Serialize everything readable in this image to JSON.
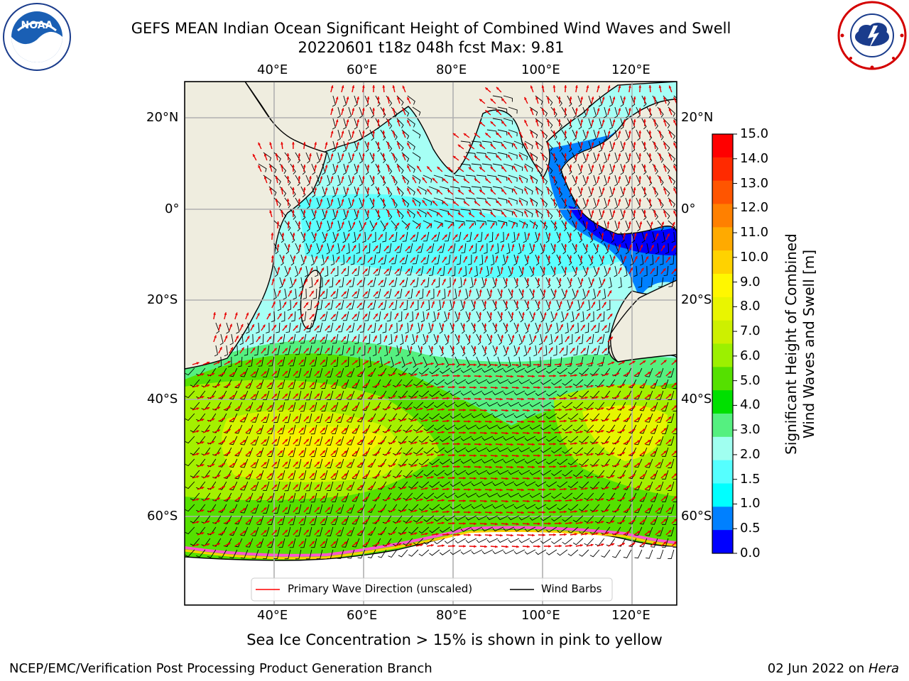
{
  "header": {
    "title_line1": "GEFS MEAN Indian Ocean Significant Height of Combined Wind Waves and Swell",
    "title_line2": "20220601 t18z 048h fcst   Max: 9.81"
  },
  "logos": {
    "left": {
      "text": "NOAA",
      "ring_text": "NATIONAL OCEANIC AND ATMOSPHERIC ADMINISTRATION · U.S. DEPARTMENT OF COMMERCE"
    },
    "right": {
      "ring_text": "NATIONAL WEATHER SERVICE"
    }
  },
  "map": {
    "lon_labels_top": [
      "40°E",
      "60°E",
      "80°E",
      "100°E",
      "120°E"
    ],
    "lon_labels_bottom": [
      "40°E",
      "60°E",
      "80°E",
      "100°E",
      "120°E"
    ],
    "lat_labels_left": [
      "20°N",
      "0°",
      "20°S",
      "40°S",
      "60°S"
    ],
    "lat_labels_right": [
      "20°N",
      "0°",
      "20°S",
      "40°S",
      "60°S"
    ],
    "land_color": "#efeddf",
    "legend": {
      "wave_label": "Primary Wave Direction (unscaled)",
      "wind_label": "Wind Barbs",
      "wave_color": "#ff0000",
      "wind_color": "#000000"
    }
  },
  "colorbar": {
    "ticks": [
      "15.0",
      "14.0",
      "13.0",
      "12.0",
      "11.0",
      "10.0",
      "9.0",
      "8.0",
      "7.0",
      "6.0",
      "5.0",
      "4.0",
      "3.0",
      "2.0",
      "1.5",
      "1.0",
      "0.5",
      "0.0"
    ],
    "colors": [
      "#ff0000",
      "#ff2a00",
      "#ff5500",
      "#ff8000",
      "#ffaa00",
      "#ffd200",
      "#fff700",
      "#e9f500",
      "#cdf000",
      "#9cf000",
      "#55e000",
      "#00e000",
      "#55f080",
      "#a0fff0",
      "#55ffff",
      "#00ffff",
      "#0080ff",
      "#0000ff"
    ],
    "label_line1": "Significant Height of Combined",
    "label_line2": "Wind Waves and Swell [m]"
  },
  "caption": "Sea Ice Concentration > 15% is shown in pink to yellow",
  "footer": {
    "left": "NCEP/EMC/Verification Post Processing Product Generation Branch",
    "right_date": "02 Jun 2022 on ",
    "right_host": "Hera"
  }
}
